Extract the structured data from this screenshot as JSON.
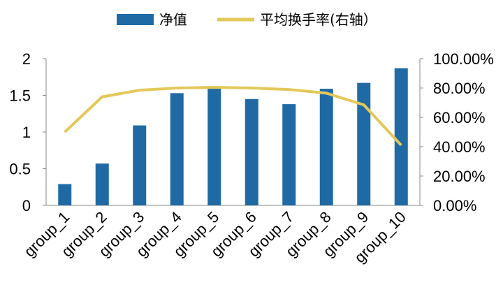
{
  "chart_data": {
    "type": "bar",
    "categories": [
      "group_1",
      "group_2",
      "group_3",
      "group_4",
      "group_5",
      "group_6",
      "group_7",
      "group_8",
      "group_9",
      "group_10"
    ],
    "series": [
      {
        "name": "净值",
        "kind": "bar",
        "axis": "left",
        "color": "#1f6aa5",
        "values": [
          0.29,
          0.57,
          1.09,
          1.53,
          1.6,
          1.45,
          1.38,
          1.59,
          1.67,
          1.87
        ]
      },
      {
        "name": "平均换手率(右轴）",
        "kind": "line",
        "axis": "right",
        "color": "#e3c85a",
        "values": [
          0.5,
          0.74,
          0.785,
          0.8,
          0.805,
          0.8,
          0.79,
          0.765,
          0.685,
          0.41
        ]
      }
    ],
    "ylim": [
      0,
      2
    ],
    "y_ticks": [
      "0",
      "0.5",
      "1",
      "1.5",
      "2"
    ],
    "y2lim": [
      0,
      1
    ],
    "y2_ticks": [
      "0.00%",
      "20.00%",
      "40.00%",
      "60.00%",
      "80.00%",
      "100.00%"
    ],
    "legend_position": "top-center",
    "grid": false
  }
}
